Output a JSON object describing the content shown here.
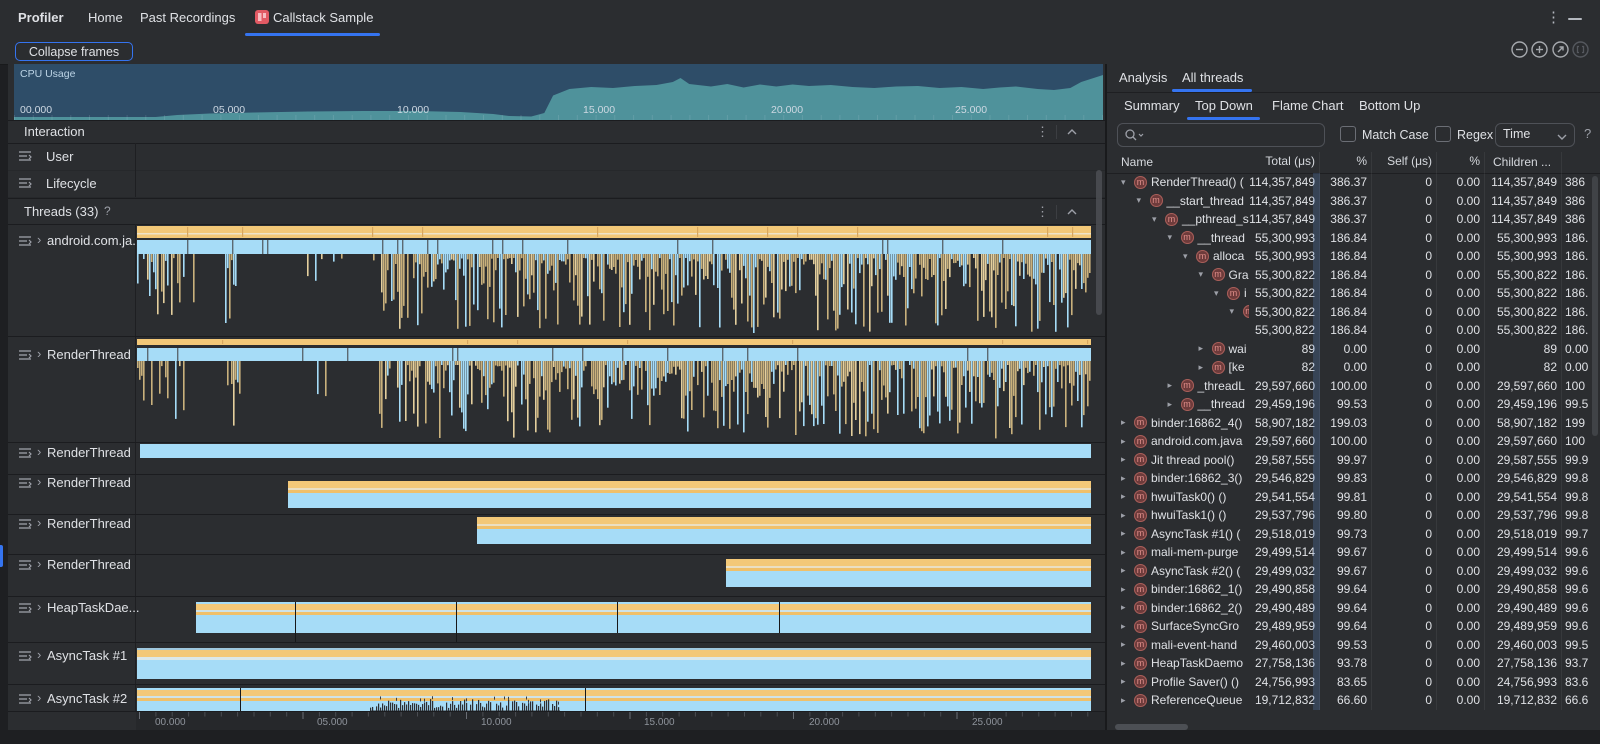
{
  "titlebar": {
    "app_label": "Profiler",
    "tabs": [
      {
        "label": "Home",
        "active": false
      },
      {
        "label": "Past Recordings",
        "active": false
      },
      {
        "label": "Callstack Sample",
        "active": true
      }
    ]
  },
  "toolbar": {
    "collapse_label": "Collapse frames"
  },
  "icons": {
    "more_menu": "⋮",
    "minimize": "minimize",
    "zoom_controls": [
      "zoom-out",
      "zoom-in",
      "reset-zoom",
      "zoom-to-selection"
    ]
  },
  "left": {
    "cpu": {
      "label": "CPU Usage",
      "time_labels": [
        "00.000",
        "05.000",
        "10.000",
        "15.000",
        "20.000",
        "25.000"
      ]
    },
    "interaction": {
      "title": "Interaction",
      "rows": [
        {
          "label": "User"
        },
        {
          "label": "Lifecycle"
        }
      ]
    },
    "threads": {
      "title": "Threads (33)",
      "help": "?",
      "rows": [
        {
          "name": "android.com.ja..."
        },
        {
          "name": "RenderThread"
        },
        {
          "name": "RenderThread"
        },
        {
          "name": "RenderThread"
        },
        {
          "name": "RenderThread"
        },
        {
          "name": "RenderThread"
        },
        {
          "name": "HeapTaskDae..."
        },
        {
          "name": "AsyncTask #1"
        },
        {
          "name": "AsyncTask #2"
        }
      ]
    },
    "timeline": {
      "labels": [
        "00.000",
        "05.000",
        "10.000",
        "15.000",
        "20.000",
        "25.000"
      ]
    }
  },
  "right": {
    "tabs": [
      {
        "label": "Analysis",
        "active": false
      },
      {
        "label": "All threads",
        "active": true
      }
    ],
    "subtabs": [
      {
        "label": "Summary",
        "active": false
      },
      {
        "label": "Top Down",
        "active": true
      },
      {
        "label": "Flame Chart",
        "active": false
      },
      {
        "label": "Bottom Up",
        "active": false
      }
    ],
    "search_placeholder": "",
    "match_case_label": "Match Case",
    "regex_label": "Regex",
    "time_filter_value": "Time",
    "help_label": "?",
    "table": {
      "columns": [
        "Name",
        "Total (μs)",
        "%",
        "Self (μs)",
        "%",
        "Children ..."
      ],
      "rows": [
        {
          "depth": 0,
          "chev": "down",
          "name": "RenderThread() (",
          "total": "114,357,849",
          "total_pct": "386.37",
          "self": "0",
          "self_pct": "0.00",
          "children": "114,357,849",
          "children_pct": "386"
        },
        {
          "depth": 1,
          "chev": "down",
          "name": "__start_thread",
          "total": "114,357,849",
          "total_pct": "386.37",
          "self": "0",
          "self_pct": "0.00",
          "children": "114,357,849",
          "children_pct": "386"
        },
        {
          "depth": 2,
          "chev": "down",
          "name": "__pthread_s",
          "total": "114,357,849",
          "total_pct": "386.37",
          "self": "0",
          "self_pct": "0.00",
          "children": "114,357,849",
          "children_pct": "386"
        },
        {
          "depth": 3,
          "chev": "down",
          "name": "__thread",
          "total": "55,300,993",
          "total_pct": "186.84",
          "self": "0",
          "self_pct": "0.00",
          "children": "55,300,993",
          "children_pct": "186."
        },
        {
          "depth": 4,
          "chev": "down",
          "name": "alloca",
          "total": "55,300,993",
          "total_pct": "186.84",
          "self": "0",
          "self_pct": "0.00",
          "children": "55,300,993",
          "children_pct": "186."
        },
        {
          "depth": 5,
          "chev": "down",
          "name": "Gra",
          "total": "55,300,822",
          "total_pct": "186.84",
          "self": "0",
          "self_pct": "0.00",
          "children": "55,300,822",
          "children_pct": "186."
        },
        {
          "depth": 6,
          "chev": "down",
          "name": "i",
          "total": "55,300,822",
          "total_pct": "186.84",
          "self": "0",
          "self_pct": "0.00",
          "children": "55,300,822",
          "children_pct": "186."
        },
        {
          "depth": 7,
          "chev": "down",
          "name": "",
          "total": "55,300,822",
          "total_pct": "186.84",
          "self": "0",
          "self_pct": "0.00",
          "children": "55,300,822",
          "children_pct": "186."
        },
        {
          "depth": 9,
          "chev": null,
          "name": "",
          "total": "55,300,822",
          "total_pct": "186.84",
          "self": "0",
          "self_pct": "0.00",
          "children": "55,300,822",
          "children_pct": "186."
        },
        {
          "depth": 5,
          "chev": "right",
          "name": "wai",
          "total": "89",
          "total_pct": "0.00",
          "self": "0",
          "self_pct": "0.00",
          "children": "89",
          "children_pct": "0.00"
        },
        {
          "depth": 5,
          "chev": "right",
          "name": "[ke",
          "total": "82",
          "total_pct": "0.00",
          "self": "0",
          "self_pct": "0.00",
          "children": "82",
          "children_pct": "0.00"
        },
        {
          "depth": 3,
          "chev": "right",
          "name": "_threadL",
          "total": "29,597,660",
          "total_pct": "100.00",
          "self": "0",
          "self_pct": "0.00",
          "children": "29,597,660",
          "children_pct": "100"
        },
        {
          "depth": 3,
          "chev": "right",
          "name": "__thread",
          "total": "29,459,196",
          "total_pct": "99.53",
          "self": "0",
          "self_pct": "0.00",
          "children": "29,459,196",
          "children_pct": "99.5"
        },
        {
          "depth": 0,
          "chev": "right",
          "name": "binder:16862_4()",
          "total": "58,907,182",
          "total_pct": "199.03",
          "self": "0",
          "self_pct": "0.00",
          "children": "58,907,182",
          "children_pct": "199"
        },
        {
          "depth": 0,
          "chev": "right",
          "name": "android.com.java",
          "total": "29,597,660",
          "total_pct": "100.00",
          "self": "0",
          "self_pct": "0.00",
          "children": "29,597,660",
          "children_pct": "100"
        },
        {
          "depth": 0,
          "chev": "right",
          "name": "Jit thread pool()",
          "total": "29,587,555",
          "total_pct": "99.97",
          "self": "0",
          "self_pct": "0.00",
          "children": "29,587,555",
          "children_pct": "99.9"
        },
        {
          "depth": 0,
          "chev": "right",
          "name": "binder:16862_3()",
          "total": "29,546,829",
          "total_pct": "99.83",
          "self": "0",
          "self_pct": "0.00",
          "children": "29,546,829",
          "children_pct": "99.8"
        },
        {
          "depth": 0,
          "chev": "right",
          "name": "hwuiTask0() ()",
          "total": "29,541,554",
          "total_pct": "99.81",
          "self": "0",
          "self_pct": "0.00",
          "children": "29,541,554",
          "children_pct": "99.8"
        },
        {
          "depth": 0,
          "chev": "right",
          "name": "hwuiTask1() ()",
          "total": "29,537,796",
          "total_pct": "99.80",
          "self": "0",
          "self_pct": "0.00",
          "children": "29,537,796",
          "children_pct": "99.8"
        },
        {
          "depth": 0,
          "chev": "right",
          "name": "AsyncTask #1() (",
          "total": "29,518,019",
          "total_pct": "99.73",
          "self": "0",
          "self_pct": "0.00",
          "children": "29,518,019",
          "children_pct": "99.7"
        },
        {
          "depth": 0,
          "chev": "right",
          "name": "mali-mem-purge",
          "total": "29,499,514",
          "total_pct": "99.67",
          "self": "0",
          "self_pct": "0.00",
          "children": "29,499,514",
          "children_pct": "99.6"
        },
        {
          "depth": 0,
          "chev": "right",
          "name": "AsyncTask #2() (",
          "total": "29,499,032",
          "total_pct": "99.67",
          "self": "0",
          "self_pct": "0.00",
          "children": "29,499,032",
          "children_pct": "99.6"
        },
        {
          "depth": 0,
          "chev": "right",
          "name": "binder:16862_1()",
          "total": "29,490,858",
          "total_pct": "99.64",
          "self": "0",
          "self_pct": "0.00",
          "children": "29,490,858",
          "children_pct": "99.6"
        },
        {
          "depth": 0,
          "chev": "right",
          "name": "binder:16862_2()",
          "total": "29,490,489",
          "total_pct": "99.64",
          "self": "0",
          "self_pct": "0.00",
          "children": "29,490,489",
          "children_pct": "99.6"
        },
        {
          "depth": 0,
          "chev": "right",
          "name": "SurfaceSyncGro",
          "total": "29,489,959",
          "total_pct": "99.64",
          "self": "0",
          "self_pct": "0.00",
          "children": "29,489,959",
          "children_pct": "99.6"
        },
        {
          "depth": 0,
          "chev": "right",
          "name": "mali-event-hand",
          "total": "29,460,003",
          "total_pct": "99.53",
          "self": "0",
          "self_pct": "0.00",
          "children": "29,460,003",
          "children_pct": "99.5"
        },
        {
          "depth": 0,
          "chev": "right",
          "name": "HeapTaskDaemo",
          "total": "27,758,136",
          "total_pct": "93.78",
          "self": "0",
          "self_pct": "0.00",
          "children": "27,758,136",
          "children_pct": "93.7"
        },
        {
          "depth": 0,
          "chev": "right",
          "name": "Profile Saver() ()",
          "total": "24,756,993",
          "total_pct": "83.65",
          "self": "0",
          "self_pct": "0.00",
          "children": "24,756,993",
          "children_pct": "83.6"
        },
        {
          "depth": 0,
          "chev": "right",
          "name": "ReferenceQueue",
          "total": "19,712,832",
          "total_pct": "66.60",
          "self": "0",
          "self_pct": "0.00",
          "children": "19,712,832",
          "children_pct": "66.6"
        }
      ]
    }
  },
  "colors": {
    "accent": "#3574f0",
    "cpu_bg": "#2e4d68",
    "cpu_fill": "#4f929b",
    "flame_orange": "#f3c878",
    "flame_blue": "#a6dcf7",
    "flame_tan": "#c9b17c",
    "method_icon": "#6e3b3b"
  }
}
